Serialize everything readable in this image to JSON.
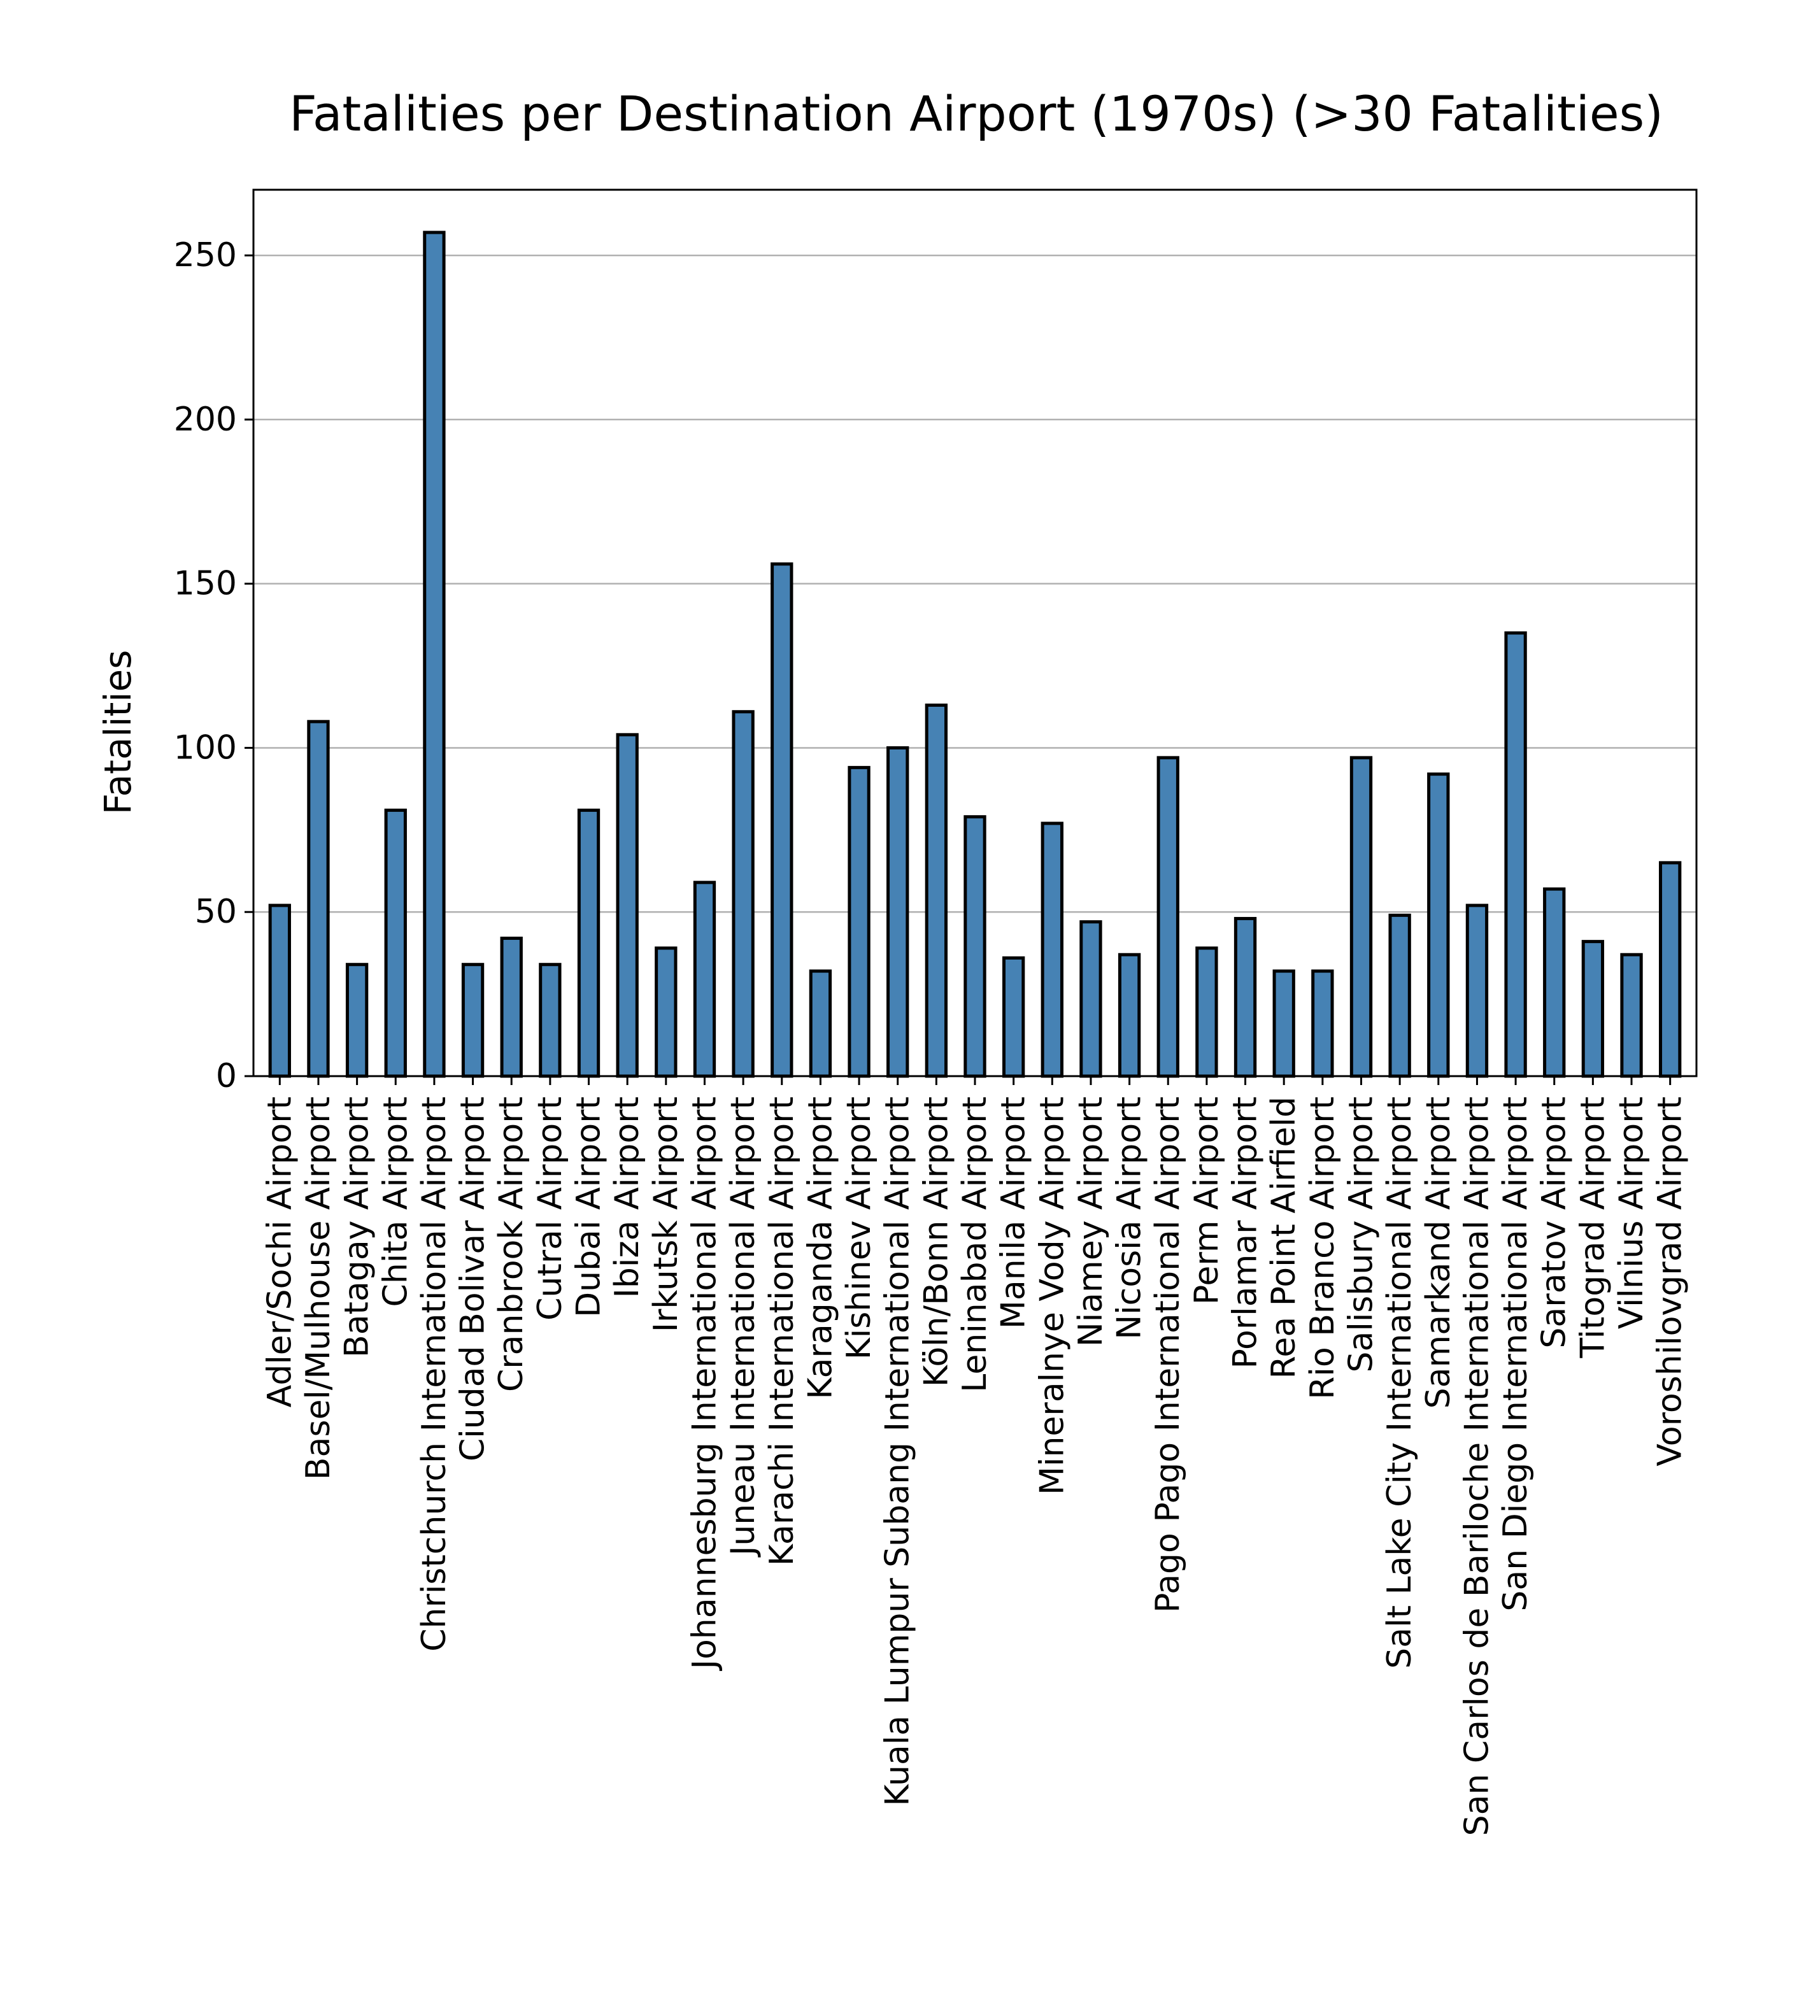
{
  "chart_data": {
    "type": "bar",
    "title": "Fatalities per Destination Airport (1970s) (>30 Fatalities)",
    "xlabel": "",
    "ylabel": "Fatalities",
    "ylim": [
      0,
      270
    ],
    "yticks": [
      0,
      50,
      100,
      150,
      200,
      250
    ],
    "grid": "y",
    "bar_color": "#4682b4",
    "edge_color": "#000000",
    "categories": [
      "Adler/Sochi Airport",
      "Basel/Mulhouse Airport",
      "Batagay Airport",
      "Chita Airport",
      "Christchurch International Airport",
      "Ciudad Bolivar Airport",
      "Cranbrook Airport",
      "Cutral Airport",
      "Dubai Airport",
      "Ibiza Airport",
      "Irkutsk Airport",
      "Johannesburg International Airport",
      "Juneau International Airport",
      "Karachi International Airport",
      "Karaganda Airport",
      "Kishinev Airport",
      "Kuala Lumpur Subang International Airport",
      "Köln/Bonn Airport",
      "Leninabad Airport",
      "Manila Airport",
      "Mineralnye Vody Airport",
      "Niamey Airport",
      "Nicosia Airport",
      "Pago Pago International Airport",
      "Perm Airport",
      "Porlamar Airport",
      "Rea Point Airfield",
      "Rio Branco Airport",
      "Salisbury Airport",
      "Salt Lake City International Airport",
      "Samarkand Airport",
      "San Carlos de Bariloche International Airport",
      "San Diego International Airport",
      "Saratov Airport",
      "Titograd Airport",
      "Vilnius Airport",
      "Voroshilovgrad Airport"
    ],
    "values": [
      52,
      108,
      34,
      81,
      257,
      34,
      42,
      34,
      81,
      104,
      39,
      59,
      111,
      156,
      32,
      94,
      100,
      113,
      79,
      36,
      77,
      47,
      37,
      97,
      39,
      48,
      32,
      32,
      97,
      49,
      92,
      52,
      135,
      57,
      41,
      37,
      65
    ]
  }
}
